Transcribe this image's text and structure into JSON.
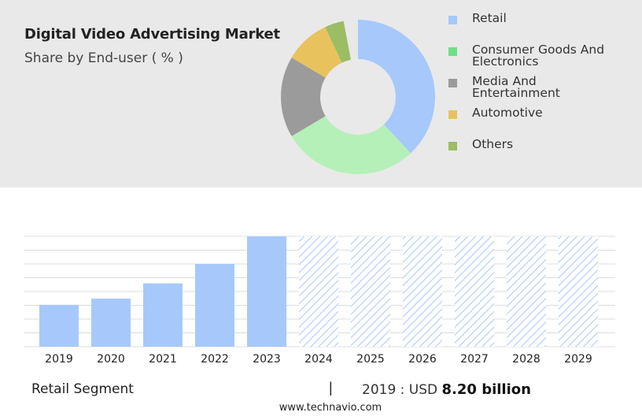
{
  "title": "Digital Video Advertising Market",
  "subtitle": "Share by End-user ( % )",
  "donut": {
    "segments": [
      {
        "name": "Retail",
        "share": 0.38,
        "color": "#a7c8fb"
      },
      {
        "name": "Consumer Goods And Electronics",
        "share": 0.285,
        "color": "#b5f0b8"
      },
      {
        "name": "Media And Entertainment",
        "share": 0.17,
        "color": "#9b9b9b"
      },
      {
        "name": "Automotive",
        "share": 0.095,
        "color": "#e8c25d"
      },
      {
        "name": "Others",
        "share": 0.04,
        "color": "#9bbd63"
      }
    ]
  },
  "legend": [
    {
      "label": "Retail",
      "color": "#a7c8fb"
    },
    {
      "label": "Consumer Goods And Electronics",
      "color": "#6ee088"
    },
    {
      "label": "Media And Entertainment",
      "color": "#9b9b9b"
    },
    {
      "label": "Automotive",
      "color": "#e8c25d"
    },
    {
      "label": "Others",
      "color": "#9bbd63"
    }
  ],
  "chart_data": {
    "type": "bar",
    "categories": [
      "2019",
      "2020",
      "2021",
      "2022",
      "2023",
      "2024",
      "2025",
      "2026",
      "2027",
      "2028",
      "2029"
    ],
    "values": [
      8.2,
      9.4,
      12.4,
      16.2,
      21.6,
      21.6,
      21.6,
      21.6,
      21.6,
      21.6,
      21.6
    ],
    "forecast_from": "2024",
    "ylim": [
      0,
      21.6
    ],
    "grid": true,
    "bar_color": "#a7c8fb"
  },
  "footer": {
    "segment": "Retail Segment",
    "separator": "|",
    "value_prefix": "2019 : USD",
    "value": "8.20 billion",
    "url": "www.technavio.com"
  }
}
